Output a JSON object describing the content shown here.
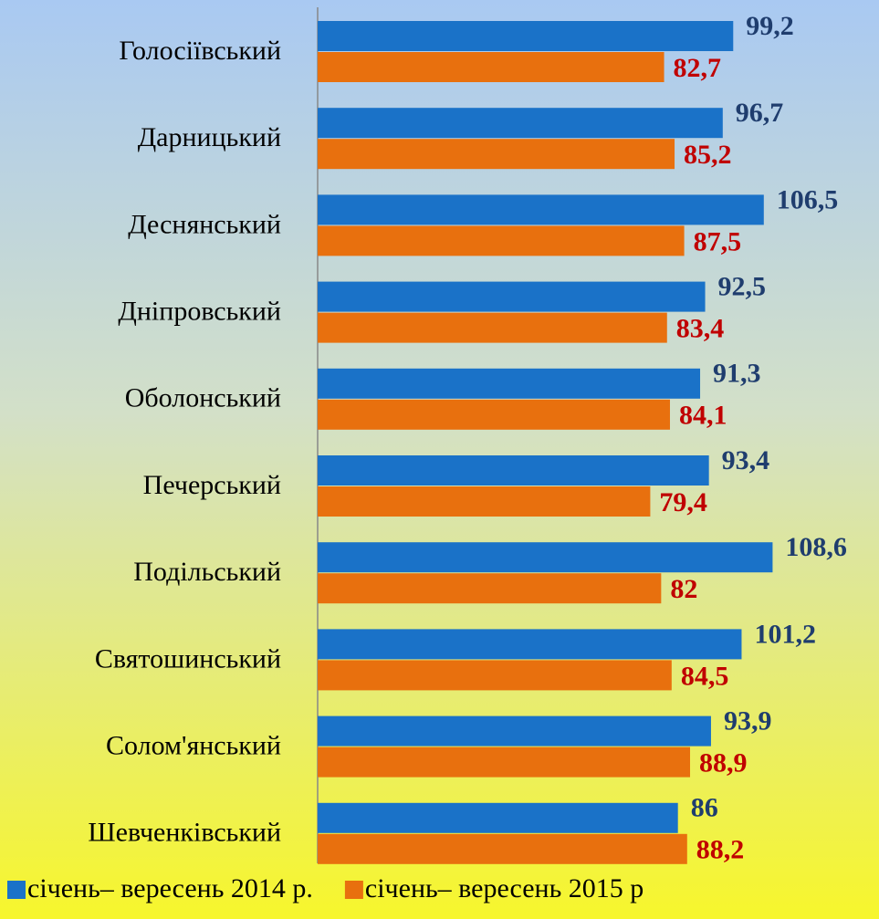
{
  "chart_data": {
    "type": "bar",
    "orientation": "horizontal",
    "categories": [
      "Голосіївський",
      "Дарницький",
      "Деснянський",
      "Дніпровський",
      "Оболонський",
      "Печерський",
      "Подільський",
      "Святошинський",
      "Солом'янський",
      "Шевченківський"
    ],
    "series": [
      {
        "name": "січень– вересень 2014 р.",
        "color": "#1a72c8",
        "label_color": "#1f3d6e",
        "values": [
          99.2,
          96.7,
          106.5,
          92.5,
          91.3,
          93.4,
          108.6,
          101.2,
          93.9,
          86
        ],
        "value_labels": [
          "99,2",
          "96,7",
          "106,5",
          "92,5",
          "91,3",
          "93,4",
          "108,6",
          "101,2",
          "93,9",
          "86"
        ]
      },
      {
        "name": "січень– вересень 2015 р",
        "color": "#e8700e",
        "label_color": "#c00000",
        "values": [
          82.7,
          85.2,
          87.5,
          83.4,
          84.1,
          79.4,
          82,
          84.5,
          88.9,
          88.2
        ],
        "value_labels": [
          "82,7",
          "85,2",
          "87,5",
          "83,4",
          "84,1",
          "79,4",
          "82",
          "84,5",
          "88,9",
          "88,2"
        ]
      }
    ],
    "xlim": [
      0,
      134
    ],
    "legend": "bottom"
  }
}
